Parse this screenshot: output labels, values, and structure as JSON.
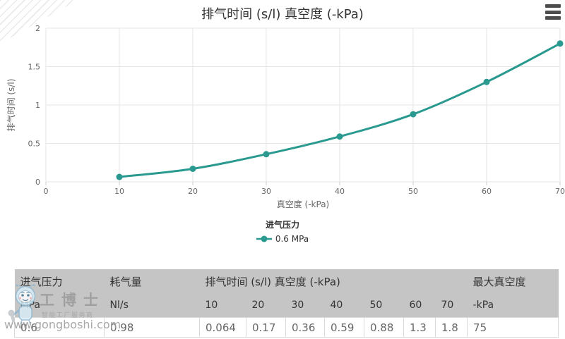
{
  "chart_data": {
    "type": "line",
    "title": "排气时间 (s/l) 真空度 (-kPa)",
    "xlabel": "真空度 (-kPa)",
    "ylabel": "排气时间 (s/l)",
    "x": [
      10,
      20,
      30,
      40,
      50,
      60,
      70
    ],
    "series": [
      {
        "name": "0.6 MPa",
        "values": [
          0.064,
          0.17,
          0.36,
          0.59,
          0.88,
          1.3,
          1.8
        ],
        "color": "#2a9a90"
      }
    ],
    "legend_title": "进气压力",
    "legend_position": "bottom",
    "xlim": [
      0,
      70
    ],
    "ylim": [
      0,
      2
    ],
    "x_ticks": [
      0,
      10,
      20,
      30,
      40,
      50,
      60,
      70
    ],
    "y_ticks": [
      0,
      0.5,
      1,
      1.5,
      2
    ],
    "grid": true,
    "colors": {
      "grid": "#e6e6e6",
      "tick": "#cccccc",
      "tick_label": "#666666",
      "title_text": "#333333"
    }
  },
  "chart_ui": {
    "context_menu_icon": "hamburger-icon"
  },
  "table": {
    "header_row1": [
      {
        "label": "进气压力",
        "colspan": 1
      },
      {
        "label": "耗气量",
        "colspan": 1
      },
      {
        "label": "排气时间 (s/l) 真空度 (-kPa)",
        "colspan": 7
      },
      {
        "label": "最大真空度",
        "colspan": 1
      }
    ],
    "header_row2": [
      "MPa",
      "Nl/s",
      "10",
      "20",
      "30",
      "40",
      "50",
      "60",
      "70",
      "-kPa"
    ],
    "rows": [
      [
        "0.6",
        "0.98",
        "0.064",
        "0.17",
        "0.36",
        "0.59",
        "0.88",
        "1.3",
        "1.8",
        "75"
      ]
    ]
  },
  "watermark": {
    "brand": "工博士",
    "tagline": "智能工厂服务商",
    "url": "www.gongboshi.com"
  }
}
